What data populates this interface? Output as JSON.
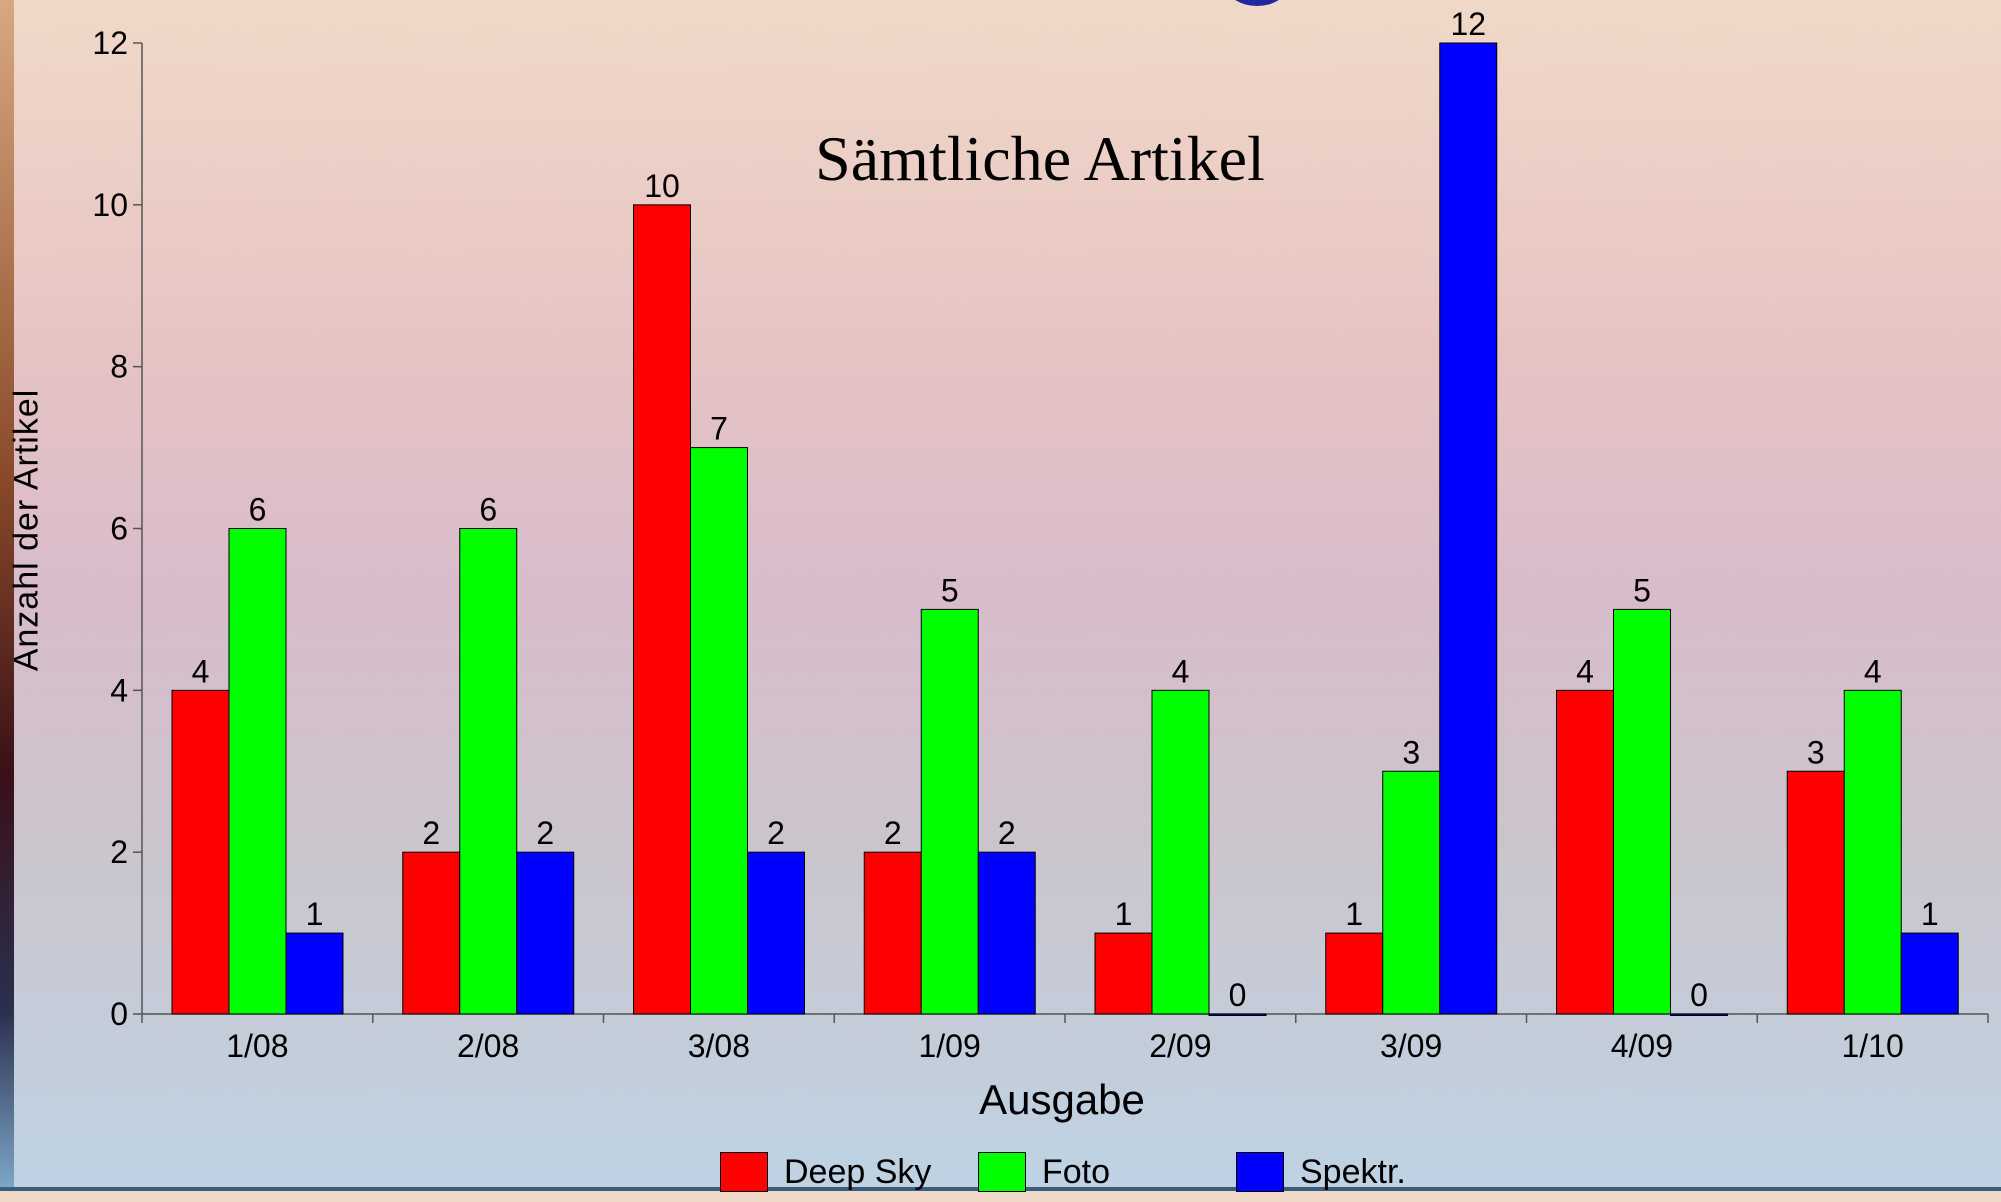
{
  "chart_data": {
    "type": "bar",
    "title": "Sämtliche Artikel",
    "xlabel": "Ausgabe",
    "ylabel": "Anzahl der Artikel",
    "categories": [
      "1/08",
      "2/08",
      "3/08",
      "1/09",
      "2/09",
      "3/09",
      "4/09",
      "1/10"
    ],
    "series": [
      {
        "name": "Deep Sky",
        "color": "#ff0000",
        "values": [
          4,
          2,
          10,
          2,
          1,
          1,
          4,
          3
        ]
      },
      {
        "name": "Foto",
        "color": "#00ff00",
        "values": [
          6,
          6,
          7,
          5,
          4,
          3,
          5,
          4
        ]
      },
      {
        "name": "Spektr.",
        "color": "#0000ff",
        "values": [
          1,
          2,
          2,
          2,
          0,
          12,
          0,
          1
        ]
      }
    ],
    "ylim": [
      0,
      12
    ],
    "yticks": [
      0,
      2,
      4,
      6,
      8,
      10,
      12
    ],
    "grid": false,
    "data_labels": true,
    "legend_position": "bottom"
  }
}
